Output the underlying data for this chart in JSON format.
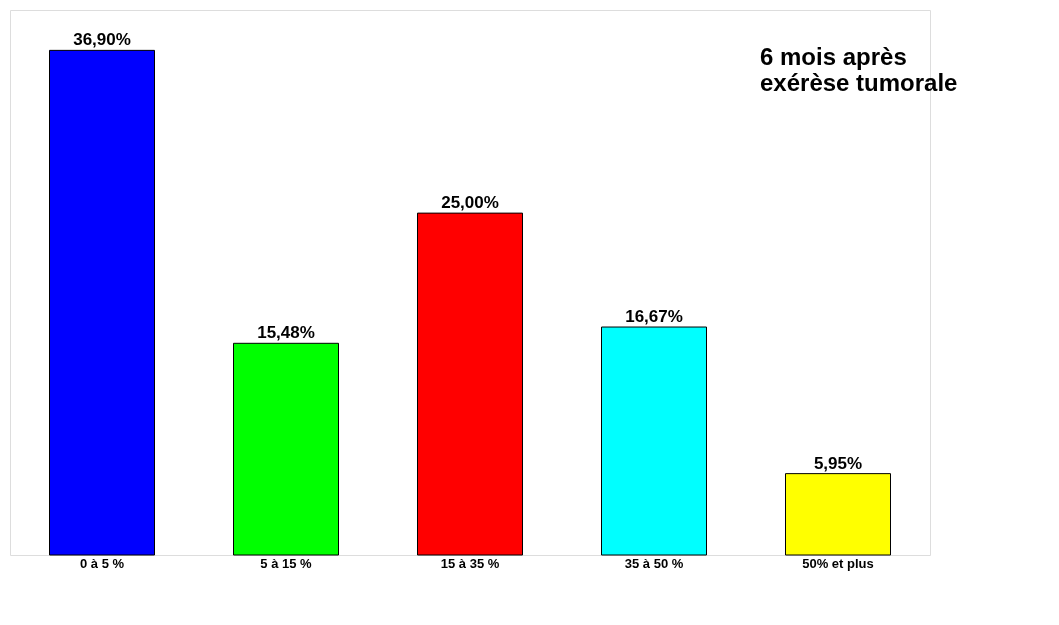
{
  "chart_data": {
    "type": "bar",
    "title": "6 mois après\nexérèse tumorale",
    "categories": [
      "0 à 5 %",
      "5 à 15 %",
      "15 à 35 %",
      "35 à 50 %",
      "50% et plus"
    ],
    "values": [
      36.9,
      15.48,
      25.0,
      16.67,
      5.95
    ],
    "colors": [
      "#0000ff",
      "#00ff00",
      "#ff0000",
      "#00ffff",
      "#ffff00"
    ],
    "value_labels": [
      "36,90%",
      "15,48%",
      "25,00%",
      "16,67%",
      "5,95%"
    ],
    "grid": false
  }
}
